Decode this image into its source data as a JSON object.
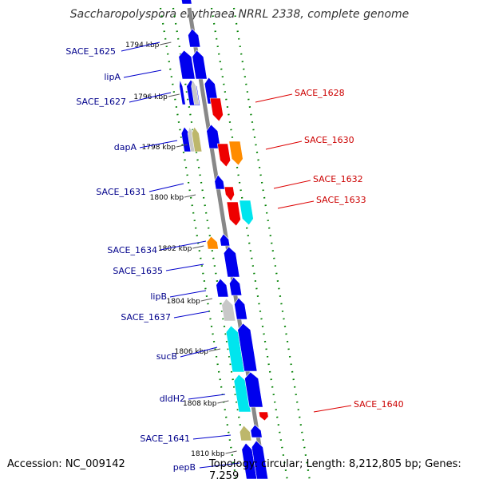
{
  "title": "Saccharopolyspora erythraea NRRL 2338, complete genome",
  "footer": {
    "accession": "Accession: NC_009142",
    "topology": "Topology: circular; Length: 8,212,805 bp; Genes: 7,259"
  },
  "ticks": [
    "1794 kbp",
    "1796 kbp",
    "1798 kbp",
    "1800 kbp",
    "1802 kbp",
    "1804 kbp",
    "1806 kbp",
    "1808 kbp",
    "1810 kbp"
  ],
  "labels_left": [
    "SACE_1625",
    "lipA",
    "SACE_1627",
    "dapA",
    "SACE_1631",
    "SACE_1634",
    "SACE_1635",
    "lipB",
    "SACE_1637",
    "sucB",
    "dldH2",
    "SACE_1641",
    "pepB"
  ],
  "labels_right": [
    "SACE_1628",
    "SACE_1630",
    "SACE_1632",
    "SACE_1633",
    "SACE_1640"
  ],
  "colors": {
    "blue": "#0000ee",
    "red": "#ee0000",
    "orange": "#ff8c00",
    "cyan": "#00e5ee",
    "gray": "#c8c8c8",
    "khaki": "#bdb76b",
    "backbone": "#888888",
    "dots": "#008000"
  }
}
